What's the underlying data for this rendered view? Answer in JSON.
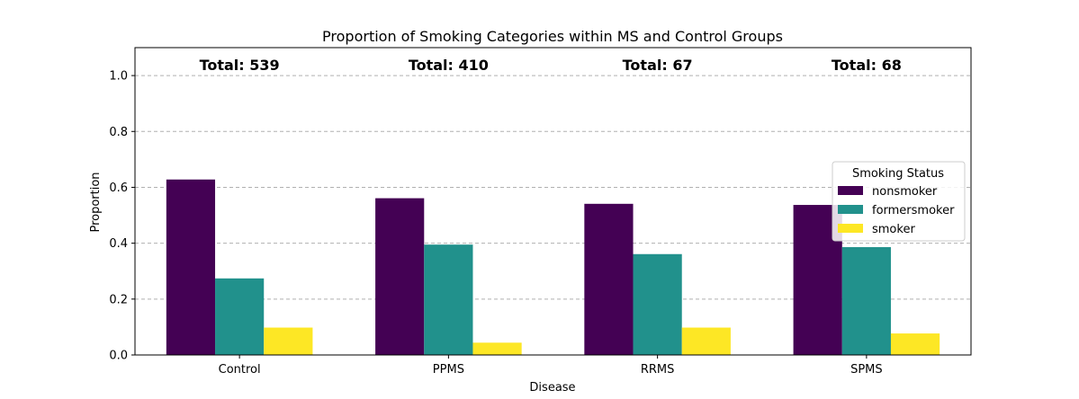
{
  "chart_data": {
    "type": "bar",
    "title": "Proportion of Smoking Categories within MS and Control Groups",
    "xlabel": "Disease",
    "ylabel": "Proportion",
    "categories": [
      "Control",
      "PPMS",
      "RRMS",
      "SPMS"
    ],
    "series": [
      {
        "name": "nonsmoker",
        "color": "#440154",
        "values": [
          0.628,
          0.561,
          0.541,
          0.537
        ]
      },
      {
        "name": "formersmoker",
        "color": "#21918c",
        "values": [
          0.274,
          0.395,
          0.361,
          0.386
        ]
      },
      {
        "name": "smoker",
        "color": "#fde725",
        "values": [
          0.098,
          0.044,
          0.098,
          0.077
        ]
      }
    ],
    "totals": [
      "Total: 539",
      "Total: 410",
      "Total: 67",
      "Total: 68"
    ],
    "ylim": [
      0,
      1.1
    ],
    "yticks": [
      "0.0",
      "0.2",
      "0.4",
      "0.6",
      "0.8",
      "1.0"
    ],
    "ytick_values": [
      0,
      0.2,
      0.4,
      0.6,
      0.8,
      1.0
    ],
    "grid": true,
    "legend": {
      "title": "Smoking Status",
      "position": "center-right"
    }
  }
}
